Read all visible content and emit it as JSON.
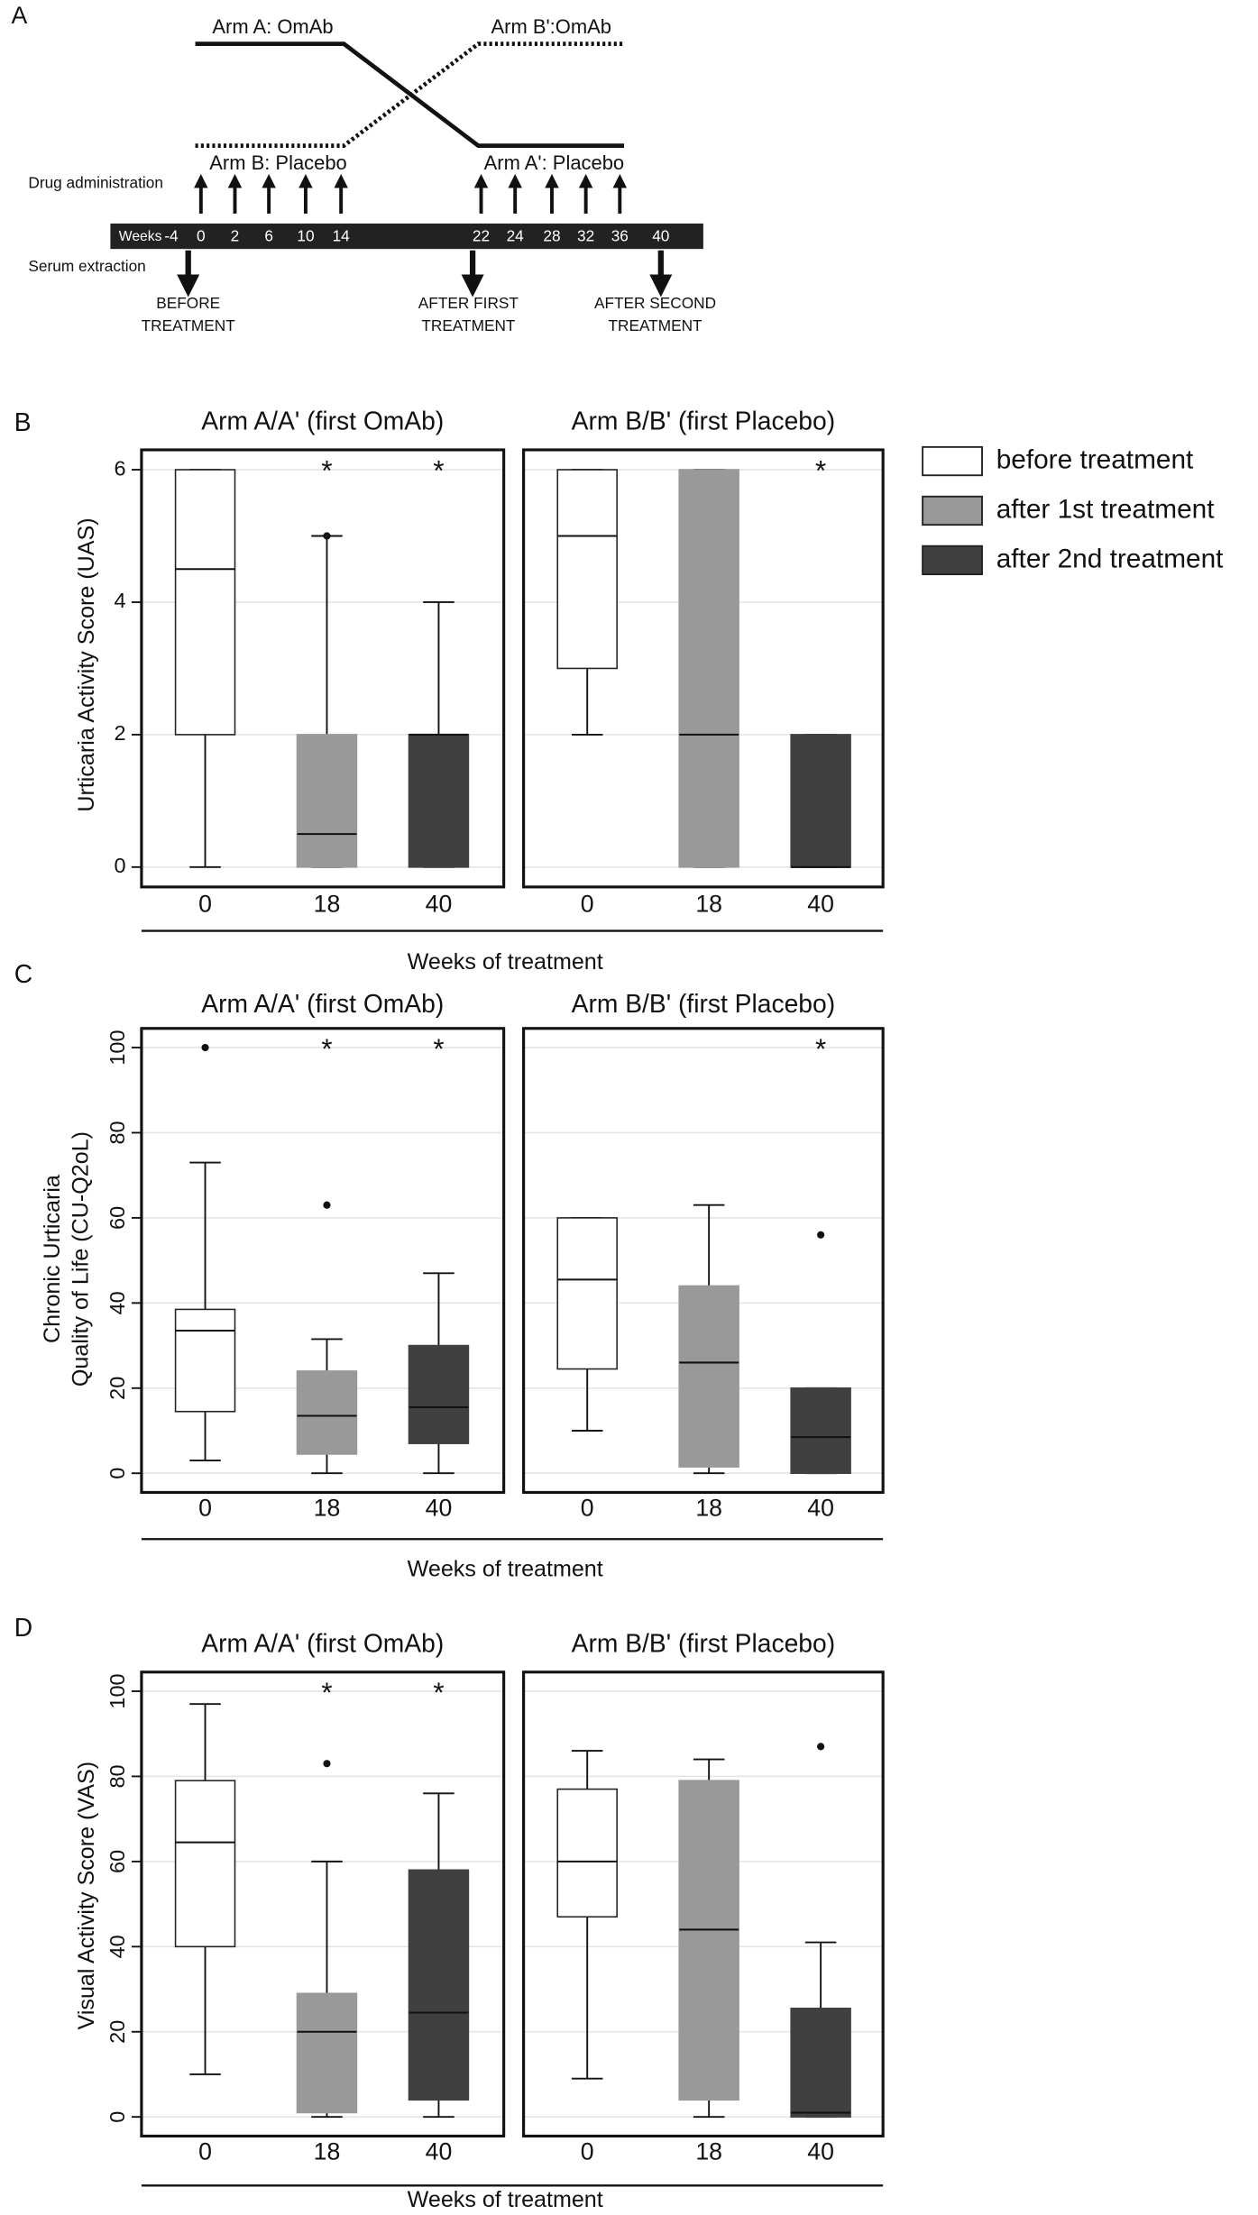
{
  "panel_a": {
    "label": "A",
    "arm_a": "Arm A: OmAb",
    "arm_b_prime": "Arm B':OmAb",
    "arm_b": "Arm B: Placebo",
    "arm_a_prime": "Arm A': Placebo",
    "drug_administration": "Drug administration",
    "serum_extraction": "Serum extraction",
    "weeks_label": "Weeks",
    "weeks": [
      "-4",
      "0",
      "2",
      "6",
      "10",
      "14",
      "22",
      "24",
      "28",
      "32",
      "36",
      "40"
    ],
    "extractions": [
      [
        "BEFORE",
        "TREATMENT"
      ],
      [
        "AFTER FIRST",
        "TREATMENT"
      ],
      [
        "AFTER SECOND",
        "TREATMENT"
      ]
    ]
  },
  "legend": [
    {
      "name": "before treatment",
      "color": "#ffffff"
    },
    {
      "name": "after 1st treatment",
      "color": "#999999"
    },
    {
      "name": "after 2nd treatment",
      "color": "#404040"
    }
  ],
  "chart_data": [
    {
      "type": "box",
      "panel": "B",
      "ylabel": [
        "Urticaria Activity Score (UAS)"
      ],
      "xlabel": "Weeks of treatment",
      "categories": [
        "0",
        "18",
        "40"
      ],
      "ylim": [
        -0.3,
        6.3
      ],
      "yticks": [
        0,
        2,
        4,
        6
      ],
      "grid": true,
      "subplots": [
        {
          "title": "Arm A/A' (first OmAb)",
          "stars": [
            null,
            "*",
            "*"
          ],
          "boxes": [
            {
              "whisker_low": 0,
              "q1": 2,
              "median": 4.5,
              "q3": 6,
              "whisker_high": 6,
              "outliers": []
            },
            {
              "whisker_low": 0,
              "q1": 0,
              "median": 0.5,
              "q3": 2,
              "whisker_high": 5,
              "outliers": [
                5
              ]
            },
            {
              "whisker_low": 0,
              "q1": 0,
              "median": 2,
              "q3": 2,
              "whisker_high": 4,
              "outliers": []
            }
          ]
        },
        {
          "title": "Arm B/B' (first Placebo)",
          "stars": [
            null,
            null,
            "*"
          ],
          "boxes": [
            {
              "whisker_low": 2,
              "q1": 3,
              "median": 5,
              "q3": 6,
              "whisker_high": 6,
              "outliers": []
            },
            {
              "whisker_low": 0,
              "q1": 0,
              "median": 2,
              "q3": 6,
              "whisker_high": 6,
              "outliers": []
            },
            {
              "whisker_low": 0,
              "q1": 0,
              "median": 0,
              "q3": 2,
              "whisker_high": 2,
              "outliers": []
            }
          ]
        }
      ]
    },
    {
      "type": "box",
      "panel": "C",
      "ylabel": [
        "Chronic Urticaria",
        "Quality of Life (CU-Q2oL)"
      ],
      "xlabel": "Weeks of treatment",
      "categories": [
        "0",
        "18",
        "40"
      ],
      "ylim": [
        -4.5,
        104.5
      ],
      "yticks": [
        0,
        20,
        40,
        60,
        80,
        100
      ],
      "grid": true,
      "subplots": [
        {
          "title": "Arm A/A' (first OmAb)",
          "stars": [
            null,
            "*",
            "*"
          ],
          "boxes": [
            {
              "whisker_low": 3,
              "q1": 14.5,
              "median": 33.5,
              "q3": 38.5,
              "whisker_high": 73,
              "outliers": [
                100
              ]
            },
            {
              "whisker_low": 0,
              "q1": 4.5,
              "median": 13.5,
              "q3": 24,
              "whisker_high": 31.5,
              "outliers": [
                63
              ]
            },
            {
              "whisker_low": 0,
              "q1": 7,
              "median": 15.5,
              "q3": 30,
              "whisker_high": 47,
              "outliers": []
            }
          ]
        },
        {
          "title": "Arm B/B' (first Placebo)",
          "stars": [
            null,
            null,
            "*"
          ],
          "boxes": [
            {
              "whisker_low": 10,
              "q1": 24.5,
              "median": 45.5,
              "q3": 60,
              "whisker_high": 60,
              "outliers": []
            },
            {
              "whisker_low": 0,
              "q1": 1.5,
              "median": 26,
              "q3": 44,
              "whisker_high": 63,
              "outliers": []
            },
            {
              "whisker_low": 0,
              "q1": 0,
              "median": 8.5,
              "q3": 20,
              "whisker_high": 20,
              "outliers": [
                56
              ]
            }
          ]
        }
      ]
    },
    {
      "type": "box",
      "panel": "D",
      "ylabel": [
        "Visual Activity Score (VAS)"
      ],
      "xlabel": "Weeks of treatment",
      "categories": [
        "0",
        "18",
        "40"
      ],
      "ylim": [
        -4.5,
        104.5
      ],
      "yticks": [
        0,
        20,
        40,
        60,
        80,
        100
      ],
      "grid": true,
      "subplots": [
        {
          "title": "Arm A/A' (first OmAb)",
          "stars": [
            null,
            "*",
            "*"
          ],
          "boxes": [
            {
              "whisker_low": 10,
              "q1": 40,
              "median": 64.5,
              "q3": 79,
              "whisker_high": 97,
              "outliers": []
            },
            {
              "whisker_low": 0,
              "q1": 1,
              "median": 20,
              "q3": 29,
              "whisker_high": 60,
              "outliers": [
                83
              ]
            },
            {
              "whisker_low": 0,
              "q1": 4,
              "median": 24.5,
              "q3": 58,
              "whisker_high": 76,
              "outliers": []
            }
          ]
        },
        {
          "title": "Arm B/B' (first Placebo)",
          "stars": [
            null,
            null,
            null
          ],
          "boxes": [
            {
              "whisker_low": 9,
              "q1": 47,
              "median": 60,
              "q3": 77,
              "whisker_high": 86,
              "outliers": []
            },
            {
              "whisker_low": 0,
              "q1": 4,
              "median": 44,
              "q3": 79,
              "whisker_high": 84,
              "outliers": []
            },
            {
              "whisker_low": 0,
              "q1": 0,
              "median": 1,
              "q3": 25.5,
              "whisker_high": 41,
              "outliers": [
                87
              ]
            }
          ]
        }
      ]
    }
  ]
}
